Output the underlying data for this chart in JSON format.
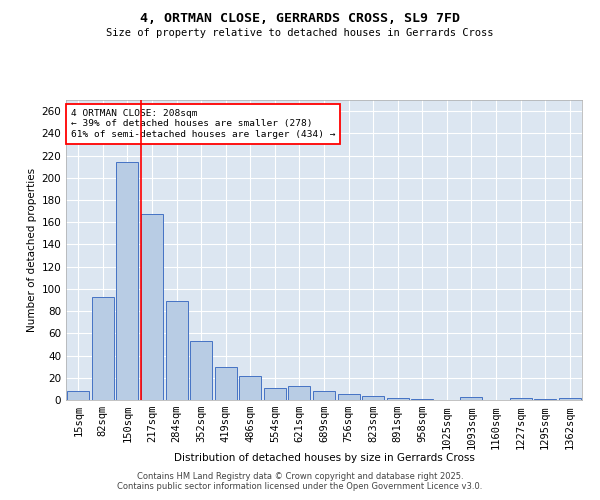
{
  "title1": "4, ORTMAN CLOSE, GERRARDS CROSS, SL9 7FD",
  "title2": "Size of property relative to detached houses in Gerrards Cross",
  "xlabel": "Distribution of detached houses by size in Gerrards Cross",
  "ylabel": "Number of detached properties",
  "categories": [
    "15sqm",
    "82sqm",
    "150sqm",
    "217sqm",
    "284sqm",
    "352sqm",
    "419sqm",
    "486sqm",
    "554sqm",
    "621sqm",
    "689sqm",
    "756sqm",
    "823sqm",
    "891sqm",
    "958sqm",
    "1025sqm",
    "1093sqm",
    "1160sqm",
    "1227sqm",
    "1295sqm",
    "1362sqm"
  ],
  "values": [
    8,
    93,
    214,
    167,
    89,
    53,
    30,
    22,
    11,
    13,
    8,
    5,
    4,
    2,
    1,
    0,
    3,
    0,
    2,
    1,
    2
  ],
  "bar_color": "#b8cce4",
  "bar_edge_color": "#4472c4",
  "redline_index": 3,
  "annotation_text": "4 ORTMAN CLOSE: 208sqm\n← 39% of detached houses are smaller (278)\n61% of semi-detached houses are larger (434) →",
  "bg_color": "#dce6f1",
  "grid_color": "white",
  "footer1": "Contains HM Land Registry data © Crown copyright and database right 2025.",
  "footer2": "Contains public sector information licensed under the Open Government Licence v3.0.",
  "ylim": [
    0,
    270
  ],
  "yticks": [
    0,
    20,
    40,
    60,
    80,
    100,
    120,
    140,
    160,
    180,
    200,
    220,
    240,
    260
  ]
}
